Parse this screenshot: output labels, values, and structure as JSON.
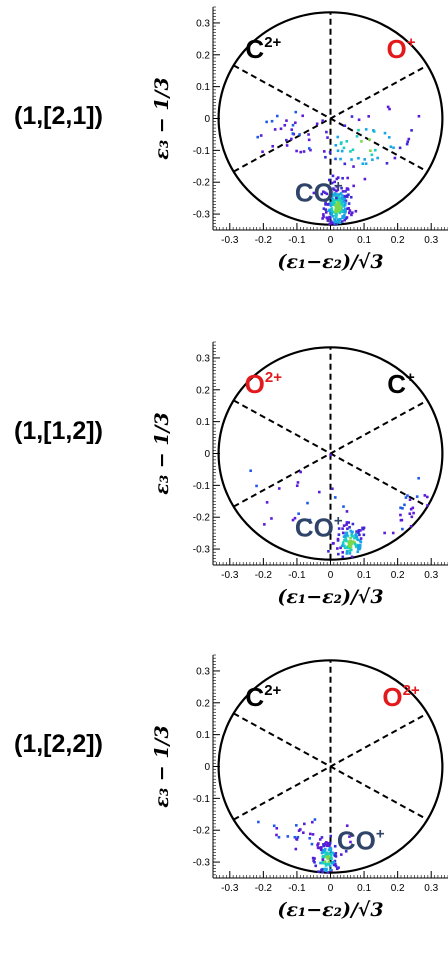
{
  "chart_data": [
    {
      "type": "scatter",
      "row_label": "(1,[2,1])",
      "xlabel": "(ε₁−ε₂)/√3",
      "ylabel": "ε₃ − 1/3",
      "xlim": [
        -0.35,
        0.35
      ],
      "ylim": [
        -0.35,
        0.35
      ],
      "x_ticks": [
        "-0.3",
        "-0.2",
        "-0.1",
        "0",
        "0.1",
        "0.2",
        "0.3"
      ],
      "y_ticks": [
        "0.3",
        "0.2",
        "0.1",
        "0",
        "-0.1",
        "-0.2",
        "-0.3"
      ],
      "labels": [
        {
          "text": "C",
          "sup": "2+",
          "color": "#000000",
          "x": -0.2,
          "y": 0.19
        },
        {
          "text": "O",
          "sup": "+",
          "color": "#e31a1c",
          "x": 0.21,
          "y": 0.19
        },
        {
          "text": "CO",
          "sup": "+",
          "color": "#2f4468",
          "x": -0.035,
          "y": -0.26
        }
      ],
      "clusters": [
        {
          "x": 0.02,
          "y": -0.28,
          "sx": 0.02,
          "sy": 0.04,
          "n": 230
        },
        {
          "x": 0.1,
          "y": -0.08,
          "sx": 0.08,
          "sy": 0.05,
          "n": 60
        },
        {
          "x": -0.12,
          "y": -0.05,
          "sx": 0.06,
          "sy": 0.03,
          "n": 30
        }
      ]
    },
    {
      "type": "scatter",
      "row_label": "(1,[1,2])",
      "xlabel": "(ε₁−ε₂)/√3",
      "ylabel": "ε₃ − 1/3",
      "xlim": [
        -0.35,
        0.35
      ],
      "ylim": [
        -0.35,
        0.35
      ],
      "x_ticks": [
        "-0.3",
        "-0.2",
        "-0.1",
        "0",
        "0.1",
        "0.2",
        "0.3"
      ],
      "y_ticks": [
        "0.3",
        "0.2",
        "0.1",
        "0",
        "-0.1",
        "-0.2",
        "-0.3"
      ],
      "labels": [
        {
          "text": "O",
          "sup": "2+",
          "color": "#e31a1c",
          "x": -0.2,
          "y": 0.19
        },
        {
          "text": "C",
          "sup": "+",
          "color": "#000000",
          "x": 0.21,
          "y": 0.19
        },
        {
          "text": "CO",
          "sup": "+",
          "color": "#2f4468",
          "x": -0.035,
          "y": -0.26
        }
      ],
      "clusters": [
        {
          "x": 0.06,
          "y": -0.28,
          "sx": 0.025,
          "sy": 0.03,
          "n": 110
        },
        {
          "x": 0.25,
          "y": -0.2,
          "sx": 0.04,
          "sy": 0.05,
          "n": 30
        },
        {
          "x": -0.1,
          "y": -0.12,
          "sx": 0.09,
          "sy": 0.06,
          "n": 20
        }
      ]
    },
    {
      "type": "scatter",
      "row_label": "(1,[2,2])",
      "xlabel": "(ε₁−ε₂)/√3",
      "ylabel": "ε₃ − 1/3",
      "xlim": [
        -0.35,
        0.35
      ],
      "ylim": [
        -0.35,
        0.35
      ],
      "x_ticks": [
        "-0.3",
        "-0.2",
        "-0.1",
        "0",
        "0.1",
        "0.2",
        "0.3"
      ],
      "y_ticks": [
        "0.3",
        "0.2",
        "0.1",
        "0",
        "-0.1",
        "-0.2",
        "-0.3"
      ],
      "labels": [
        {
          "text": "C",
          "sup": "2+",
          "color": "#000000",
          "x": -0.2,
          "y": 0.19
        },
        {
          "text": "O",
          "sup": "2+",
          "color": "#e31a1c",
          "x": 0.21,
          "y": 0.19
        },
        {
          "text": "CO",
          "sup": "+",
          "color": "#2f4468",
          "x": 0.09,
          "y": -0.26
        }
      ],
      "clusters": [
        {
          "x": -0.01,
          "y": -0.29,
          "sx": 0.018,
          "sy": 0.03,
          "n": 120
        },
        {
          "x": -0.08,
          "y": -0.22,
          "sx": 0.08,
          "sy": 0.04,
          "n": 30
        }
      ]
    }
  ]
}
